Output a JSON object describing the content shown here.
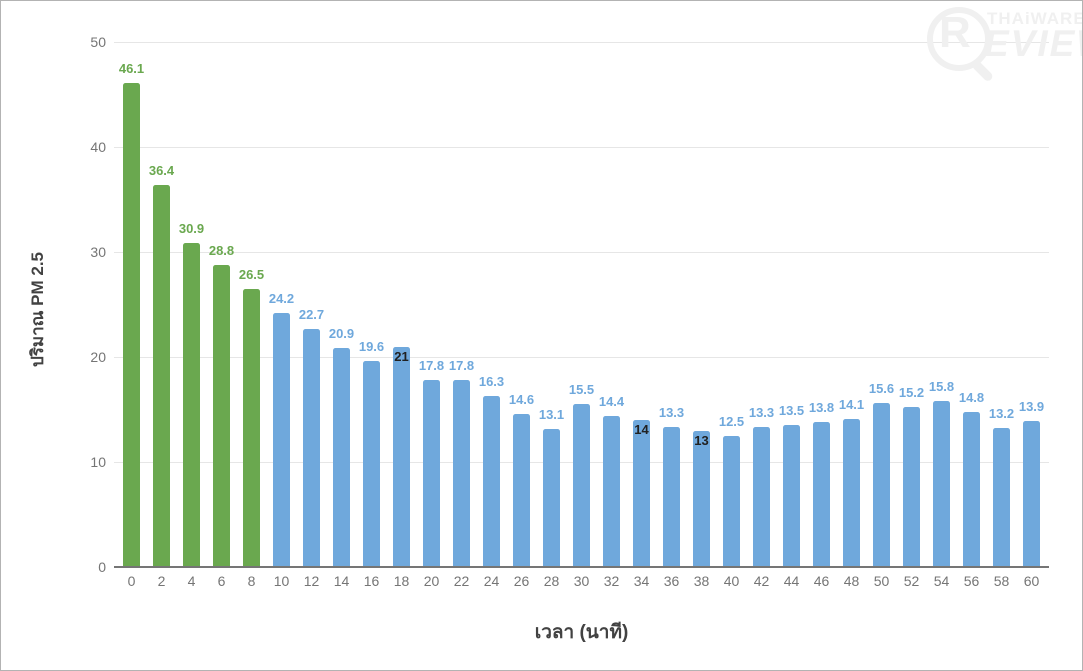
{
  "watermark": {
    "r": "R",
    "brand": "THAiWARE",
    "review": "EVIEW"
  },
  "chart_data": {
    "type": "bar",
    "title": "",
    "xlabel": "เวลา (นาที)",
    "ylabel": "ปริมาณ PM 2.5",
    "ylim": [
      0,
      50
    ],
    "yticks": [
      0,
      10,
      20,
      30,
      40,
      50
    ],
    "grid": true,
    "legend_position": "none",
    "categories": [
      0,
      2,
      4,
      6,
      8,
      10,
      12,
      14,
      16,
      18,
      20,
      22,
      24,
      26,
      28,
      30,
      32,
      34,
      36,
      38,
      40,
      42,
      44,
      46,
      48,
      50,
      52,
      54,
      56,
      58,
      60
    ],
    "values": [
      46.1,
      36.4,
      30.9,
      28.8,
      26.5,
      24.2,
      22.7,
      20.9,
      19.6,
      21,
      17.8,
      17.8,
      16.3,
      14.6,
      13.1,
      15.5,
      14.4,
      14,
      13.3,
      13,
      12.5,
      13.3,
      13.5,
      13.8,
      14.1,
      15.6,
      15.2,
      15.8,
      14.8,
      13.2,
      13.9
    ],
    "green_bar_count": 5,
    "inside_label_indices": [
      9,
      17,
      19
    ],
    "colors": {
      "green_bar": "#6aa84f",
      "blue_bar": "#6fa8dc",
      "green_label": "#6aa84f",
      "blue_label": "#6fa8dc",
      "inside_label": "#212121",
      "tick_text": "#757575",
      "axis_title": "#424242",
      "gridline": "#e6e6e6",
      "baseline": "#757575"
    }
  }
}
